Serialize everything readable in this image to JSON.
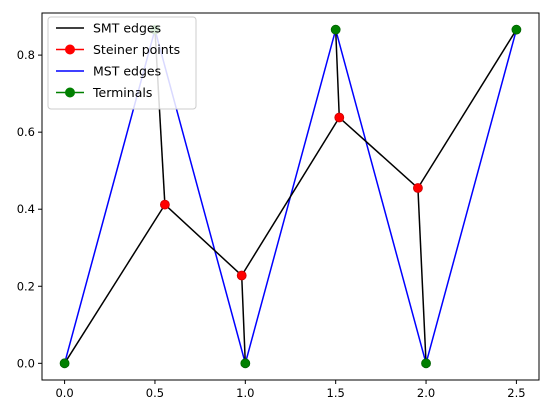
{
  "chart_data": {
    "type": "line",
    "title": "",
    "xlabel": "",
    "ylabel": "",
    "xlim": [
      -0.125,
      2.625
    ],
    "ylim": [
      -0.0433,
      0.9093
    ],
    "x_ticks": [
      0.0,
      0.5,
      1.0,
      1.5,
      2.0,
      2.5
    ],
    "x_tick_labels": [
      "0.0",
      "0.5",
      "1.0",
      "1.5",
      "2.0",
      "2.5"
    ],
    "y_ticks": [
      0.0,
      0.2,
      0.4,
      0.6,
      0.8
    ],
    "y_tick_labels": [
      "0.0",
      "0.2",
      "0.4",
      "0.6",
      "0.8"
    ],
    "grid": false,
    "legend_position": "top-left",
    "legend": [
      {
        "label": "SMT edges",
        "color": "#000000",
        "marker": false
      },
      {
        "label": "Steiner points",
        "color": "#ff0000",
        "marker": true
      },
      {
        "label": "MST edges",
        "color": "#0000ff",
        "marker": false
      },
      {
        "label": "Terminals",
        "color": "#008000",
        "marker": true
      }
    ],
    "terminals": [
      {
        "x": 0.0,
        "y": 0.0
      },
      {
        "x": 0.5,
        "y": 0.866
      },
      {
        "x": 1.0,
        "y": 0.0
      },
      {
        "x": 1.5,
        "y": 0.866
      },
      {
        "x": 2.0,
        "y": 0.0
      },
      {
        "x": 2.5,
        "y": 0.866
      }
    ],
    "steiner_points": [
      {
        "x": 0.555,
        "y": 0.412
      },
      {
        "x": 0.98,
        "y": 0.228
      },
      {
        "x": 1.52,
        "y": 0.638
      },
      {
        "x": 1.955,
        "y": 0.455
      }
    ],
    "mst_edges": [
      [
        [
          0.0,
          0.0
        ],
        [
          0.5,
          0.866
        ]
      ],
      [
        [
          0.5,
          0.866
        ],
        [
          1.0,
          0.0
        ]
      ],
      [
        [
          1.0,
          0.0
        ],
        [
          1.5,
          0.866
        ]
      ],
      [
        [
          1.5,
          0.866
        ],
        [
          2.0,
          0.0
        ]
      ],
      [
        [
          2.0,
          0.0
        ],
        [
          2.5,
          0.866
        ]
      ]
    ],
    "smt_edges": [
      [
        [
          0.0,
          0.0
        ],
        [
          0.555,
          0.412
        ]
      ],
      [
        [
          0.5,
          0.866
        ],
        [
          0.555,
          0.412
        ]
      ],
      [
        [
          0.555,
          0.412
        ],
        [
          0.98,
          0.228
        ]
      ],
      [
        [
          0.98,
          0.228
        ],
        [
          1.0,
          0.0
        ]
      ],
      [
        [
          0.98,
          0.228
        ],
        [
          1.52,
          0.638
        ]
      ],
      [
        [
          1.52,
          0.638
        ],
        [
          1.5,
          0.866
        ]
      ],
      [
        [
          1.52,
          0.638
        ],
        [
          1.955,
          0.455
        ]
      ],
      [
        [
          1.955,
          0.455
        ],
        [
          2.0,
          0.0
        ]
      ],
      [
        [
          1.955,
          0.455
        ],
        [
          2.5,
          0.866
        ]
      ]
    ]
  }
}
